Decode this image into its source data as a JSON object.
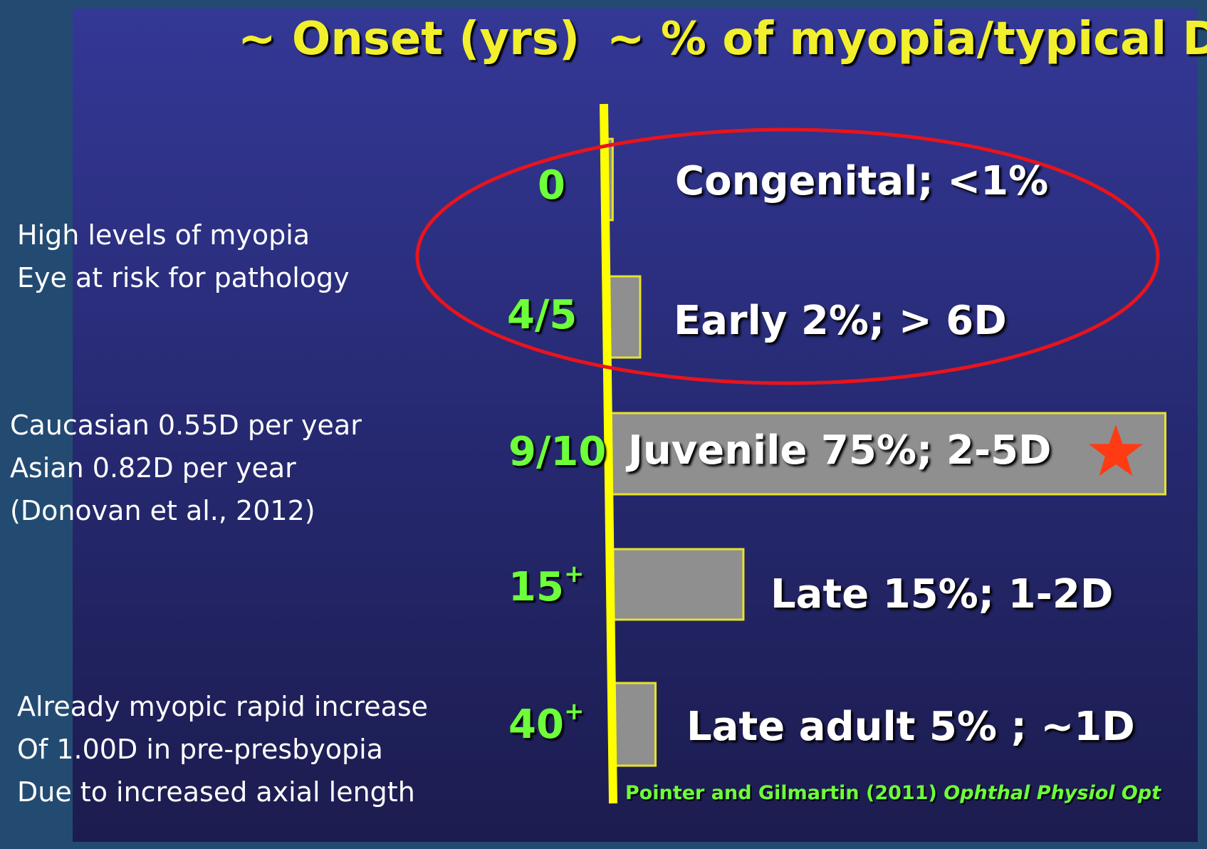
{
  "colors": {
    "background": "#234b72",
    "panel": "#2a2d80",
    "header_text": "#f2ef2c",
    "onset_text": "#6dff3a",
    "axis_line": "#ffff00",
    "bar_fill": "#8f8f8f",
    "bar_stroke": "#e7e22a",
    "ellipse": "#e8141c",
    "star": "#ff3b14",
    "note_text": "#ffffff"
  },
  "notes": {
    "high": [
      "High levels of myopia",
      "Eye at risk for  pathology"
    ],
    "rate": [
      "Caucasian 0.55D per year",
      "Asian 0.82D per year",
      "(Donovan et al., 2012)"
    ],
    "adult": [
      "Already myopic rapid increase",
      "Of 1.00D in pre-presbyopia",
      "Due to increased axial length"
    ]
  },
  "citation": {
    "authors": "Pointer and Gilmartin (2011)",
    "journal": "Ophthal Physiol Opt"
  },
  "chart_data": {
    "type": "bar",
    "orientation": "horizontal",
    "title": "",
    "column_headers": [
      "~ Onset (yrs)",
      "~ % of myopia/typical D"
    ],
    "categories": [
      "0",
      "4/5",
      "9/10",
      "15+",
      "40+"
    ],
    "onset_labels": [
      {
        "base": "0",
        "sup": ""
      },
      {
        "base": "4/5",
        "sup": ""
      },
      {
        "base": "9/10",
        "sup": ""
      },
      {
        "base": "15",
        "sup": "+"
      },
      {
        "base": "40",
        "sup": "+"
      }
    ],
    "values": [
      1,
      2,
      75,
      15,
      5
    ],
    "value_unit": "%",
    "bar_labels": [
      "Congenital;  <1%",
      "Early 2%;  > 6D",
      "Juvenile  75%;  2-5D",
      "Late 15%;  1-2D",
      "Late adult 5% ;  ~1D"
    ],
    "highlight": {
      "category": "9/10",
      "marker": "star"
    },
    "circled": [
      "0",
      "4/5"
    ],
    "axis_line": true,
    "grid": false,
    "legend": "none"
  }
}
